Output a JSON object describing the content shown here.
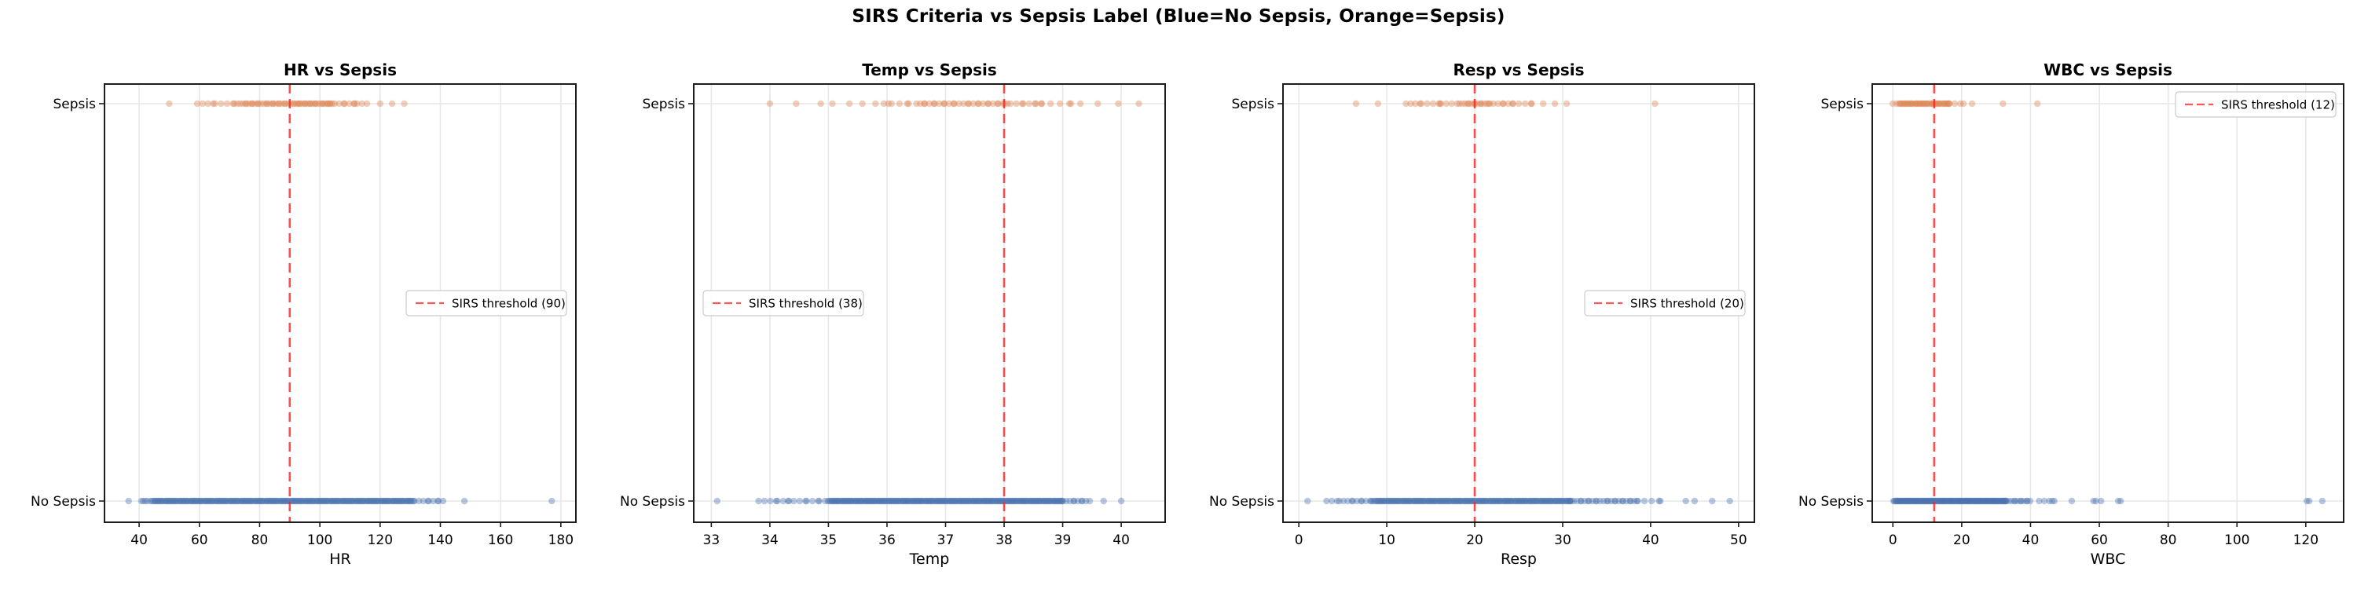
{
  "figure": {
    "title": "SIRS Criteria vs Sepsis Label (Blue=No Sepsis, Orange=Sepsis)",
    "background": "#ffffff"
  },
  "colors": {
    "no_sepsis": "#4C72B0",
    "sepsis": "#DD8452",
    "threshold": "#FF1F1F",
    "grid": "#E7E7E7",
    "axis": "#1C1C1C",
    "legend_border": "#CCCCCC",
    "text": "#000000"
  },
  "categories": [
    "No Sepsis",
    "Sepsis"
  ],
  "chart_data": [
    {
      "type": "scatter",
      "title": "HR vs Sepsis",
      "xlabel": "HR",
      "xlim": [
        28.5,
        185
      ],
      "xticks": [
        40,
        60,
        80,
        100,
        120,
        140,
        160,
        180
      ],
      "ylabels": [
        "Sepsis",
        "No Sepsis"
      ],
      "grid": true,
      "threshold": {
        "value": 90,
        "label": "SIRS threshold (90)"
      },
      "legend_pos": "center-right",
      "series": [
        {
          "name": "Sepsis",
          "row": "top",
          "color": "sepsis",
          "points": [
            50,
            120,
            124,
            128
          ],
          "bands": [
            [
              60,
              64,
              4
            ],
            [
              66,
              72,
              5
            ],
            [
              73,
              93,
              30
            ],
            [
              93,
              104,
              20
            ],
            [
              104,
              112,
              8
            ],
            [
              113,
              115.5,
              3
            ]
          ]
        },
        {
          "name": "No Sepsis",
          "row": "bottom",
          "color": "no_sepsis",
          "points": [
            36.5,
            148,
            177
          ],
          "bands": [
            [
              41,
              42.5,
              4
            ],
            [
              44,
              131,
              240
            ],
            [
              132,
              141,
              9
            ]
          ]
        }
      ]
    },
    {
      "type": "scatter",
      "title": "Temp vs Sepsis",
      "xlabel": "Temp",
      "xlim": [
        32.7,
        40.75
      ],
      "xticks": [
        33,
        34,
        35,
        36,
        37,
        38,
        39,
        40
      ],
      "ylabels": [
        "Sepsis",
        "No Sepsis"
      ],
      "grid": true,
      "threshold": {
        "value": 38,
        "label": "SIRS threshold (38)"
      },
      "legend_pos": "center-left",
      "series": [
        {
          "name": "Sepsis",
          "row": "top",
          "color": "sepsis",
          "points": [
            34.0,
            34.45,
            39.6,
            39.95,
            40.3
          ],
          "bands": [
            [
              34.95,
              35.1,
              2
            ],
            [
              35.45,
              35.95,
              4
            ],
            [
              36.0,
              36.6,
              7
            ],
            [
              36.6,
              38.05,
              26
            ],
            [
              38.05,
              38.65,
              9
            ],
            [
              38.7,
              39.3,
              6
            ]
          ]
        },
        {
          "name": "No Sepsis",
          "row": "bottom",
          "color": "no_sepsis",
          "points": [
            33.1,
            39.7,
            40.0
          ],
          "bands": [
            [
              33.85,
              34.3,
              7
            ],
            [
              34.35,
              34.95,
              9
            ],
            [
              35.0,
              39.0,
              230
            ],
            [
              39.02,
              39.45,
              10
            ]
          ]
        }
      ]
    },
    {
      "type": "scatter",
      "title": "Resp vs Sepsis",
      "xlabel": "Resp",
      "xlim": [
        -1.8,
        51.8
      ],
      "xticks": [
        0,
        10,
        20,
        30,
        40,
        50
      ],
      "ylabels": [
        "Sepsis",
        "No Sepsis"
      ],
      "grid": true,
      "threshold": {
        "value": 20,
        "label": "SIRS threshold (20)"
      },
      "legend_pos": "center-right",
      "series": [
        {
          "name": "Sepsis",
          "row": "top",
          "color": "sepsis",
          "points": [
            6.5,
            9,
            40.5
          ],
          "bands": [
            [
              12.4,
              13.6,
              4
            ],
            [
              14.2,
              16.2,
              5
            ],
            [
              16.4,
              17.8,
              4
            ],
            [
              18.4,
              21.6,
              14
            ],
            [
              21.8,
              24.2,
              7
            ],
            [
              24.6,
              26.2,
              4
            ],
            [
              27,
              30,
              4
            ]
          ]
        },
        {
          "name": "No Sepsis",
          "row": "bottom",
          "color": "no_sepsis",
          "points": [
            1,
            44,
            45,
            47,
            49
          ],
          "bands": [
            [
              3.4,
              4.3,
              3
            ],
            [
              4.8,
              8.4,
              11
            ],
            [
              8.5,
              31,
              180
            ],
            [
              31,
              38.5,
              26
            ],
            [
              38.8,
              41.3,
              5
            ]
          ]
        }
      ]
    },
    {
      "type": "scatter",
      "title": "WBC vs Sepsis",
      "xlabel": "WBC",
      "xlim": [
        -6,
        131
      ],
      "xticks": [
        0,
        20,
        40,
        60,
        80,
        100,
        120
      ],
      "ylabels": [
        "Sepsis",
        "No Sepsis"
      ],
      "grid": true,
      "threshold": {
        "value": 12,
        "label": "SIRS threshold (12)"
      },
      "legend_pos": "top-right",
      "series": [
        {
          "name": "Sepsis",
          "row": "top",
          "color": "sepsis",
          "points": [
            20.5,
            23,
            32,
            42
          ],
          "bands": [
            [
              0.4,
              2,
              3
            ],
            [
              2,
              16.5,
              42
            ],
            [
              17,
              19.5,
              3
            ]
          ]
        },
        {
          "name": "No Sepsis",
          "row": "bottom",
          "color": "no_sepsis",
          "points": [
            42.5,
            44,
            45.5,
            46.3,
            46.9,
            52,
            58.3,
            59,
            60.5,
            65.5,
            66.2,
            120.3,
            121,
            124.8
          ],
          "bands": [
            [
              0.3,
              33,
              150
            ],
            [
              33.2,
              40,
              12
            ]
          ]
        }
      ]
    }
  ]
}
